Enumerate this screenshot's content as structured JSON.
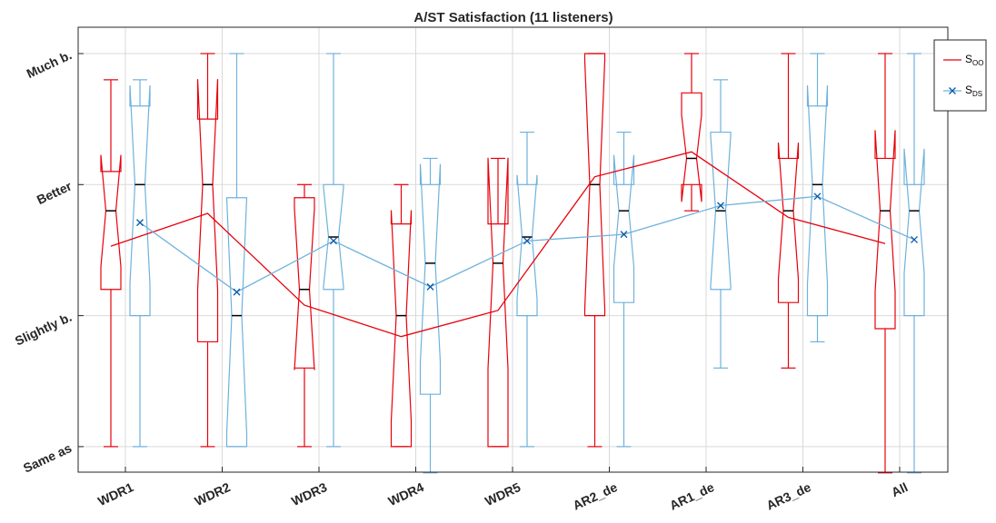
{
  "chart_data": {
    "type": "box",
    "title": "A/ST Satisfaction (11 listeners)",
    "xlabel": "",
    "ylabel": "",
    "categories": [
      "WDR1",
      "WDR2",
      "WDR3",
      "WDR4",
      "WDR5",
      "AR2_de",
      "AR1_de",
      "AR3_de",
      "All"
    ],
    "y_ticks": [
      {
        "value": 0,
        "label": "Same as"
      },
      {
        "value": 1,
        "label": "Slightly b."
      },
      {
        "value": 2,
        "label": "Better"
      },
      {
        "value": 3,
        "label": "Much b."
      }
    ],
    "ylim": [
      -0.2,
      3.3
    ],
    "grid": true,
    "legend_position": "top-right",
    "series": [
      {
        "name": "S",
        "name_sub": "OO",
        "color": "#e8000b",
        "marker": "none",
        "boxes": [
          {
            "whisker_low": 0.0,
            "q1": 1.2,
            "median": 1.8,
            "q3": 2.1,
            "whisker_high": 2.8,
            "mean": 1.53
          },
          {
            "whisker_low": 0.0,
            "q1": 0.8,
            "median": 2.0,
            "q3": 2.5,
            "whisker_high": 3.0,
            "mean": 1.78
          },
          {
            "whisker_low": 0.0,
            "q1": 0.6,
            "median": 1.2,
            "q3": 1.9,
            "whisker_high": 2.0,
            "mean": 1.08
          },
          {
            "whisker_low": 0.0,
            "q1": 0.0,
            "median": 1.0,
            "q3": 1.7,
            "whisker_high": 2.0,
            "mean": 0.84
          },
          {
            "whisker_low": 0.0,
            "q1": 0.0,
            "median": 1.4,
            "q3": 1.7,
            "whisker_high": 2.2,
            "mean": 1.04
          },
          {
            "whisker_low": 0.0,
            "q1": 1.0,
            "median": 2.0,
            "q3": 3.0,
            "whisker_high": 3.0,
            "mean": 2.06
          },
          {
            "whisker_low": 1.8,
            "q1": 2.0,
            "median": 2.2,
            "q3": 2.7,
            "whisker_high": 3.0,
            "mean": 2.25
          },
          {
            "whisker_low": 0.6,
            "q1": 1.1,
            "median": 1.8,
            "q3": 2.2,
            "whisker_high": 3.0,
            "mean": 1.75
          },
          {
            "whisker_low": -0.2,
            "q1": 0.9,
            "median": 1.8,
            "q3": 2.2,
            "whisker_high": 3.0,
            "mean": 1.55
          }
        ]
      },
      {
        "name": "S",
        "name_sub": "DS",
        "color": "#6fb2dc",
        "marker": "x",
        "marker_color": "#0a5aa8",
        "boxes": [
          {
            "whisker_low": 0.0,
            "q1": 1.0,
            "median": 2.0,
            "q3": 2.6,
            "whisker_high": 2.8,
            "mean": 1.71
          },
          {
            "whisker_low": 0.0,
            "q1": 0.0,
            "median": 1.0,
            "q3": 1.9,
            "whisker_high": 3.0,
            "mean": 1.18
          },
          {
            "whisker_low": 0.0,
            "q1": 1.2,
            "median": 1.6,
            "q3": 2.0,
            "whisker_high": 3.0,
            "mean": 1.57
          },
          {
            "whisker_low": -0.2,
            "q1": 0.4,
            "median": 1.4,
            "q3": 2.0,
            "whisker_high": 2.2,
            "mean": 1.22
          },
          {
            "whisker_low": 0.0,
            "q1": 1.0,
            "median": 1.6,
            "q3": 2.0,
            "whisker_high": 2.4,
            "mean": 1.57
          },
          {
            "whisker_low": 0.0,
            "q1": 1.1,
            "median": 1.8,
            "q3": 2.0,
            "whisker_high": 2.4,
            "mean": 1.62
          },
          {
            "whisker_low": 0.6,
            "q1": 1.2,
            "median": 1.8,
            "q3": 2.4,
            "whisker_high": 2.8,
            "mean": 1.84
          },
          {
            "whisker_low": 0.8,
            "q1": 1.0,
            "median": 2.0,
            "q3": 2.6,
            "whisker_high": 3.0,
            "mean": 1.91
          },
          {
            "whisker_low": -0.2,
            "q1": 1.0,
            "median": 1.8,
            "q3": 2.0,
            "whisker_high": 3.0,
            "mean": 1.58
          }
        ]
      }
    ]
  }
}
